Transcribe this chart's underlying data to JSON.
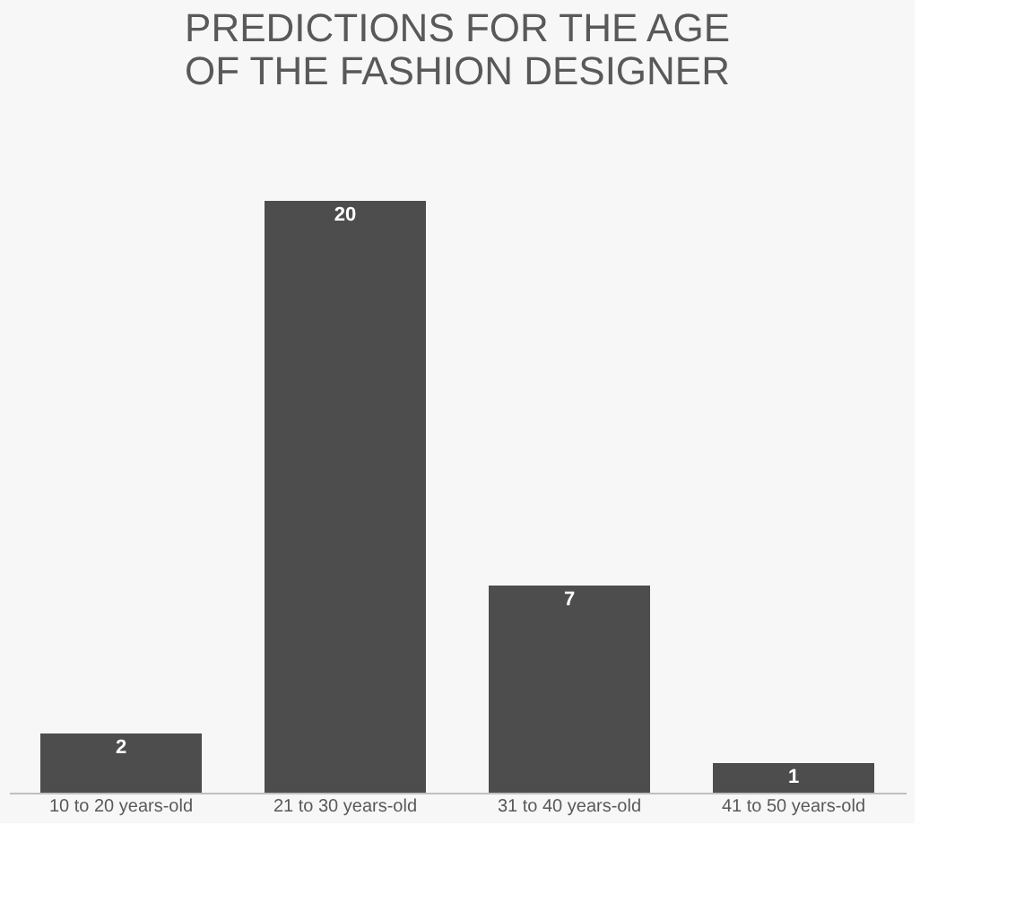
{
  "chart_data": {
    "type": "bar",
    "title": "PREDICTIONS FOR THE AGE OF THE FASHION DESIGNER",
    "categories": [
      "10 to 20 years-old",
      "21 to 30 years-old",
      "31 to 40 years-old",
      "41 to 50 years-old"
    ],
    "values": [
      2,
      20,
      7,
      1
    ],
    "color": "#4d4d4d",
    "data_labels": true,
    "grid": false
  }
}
